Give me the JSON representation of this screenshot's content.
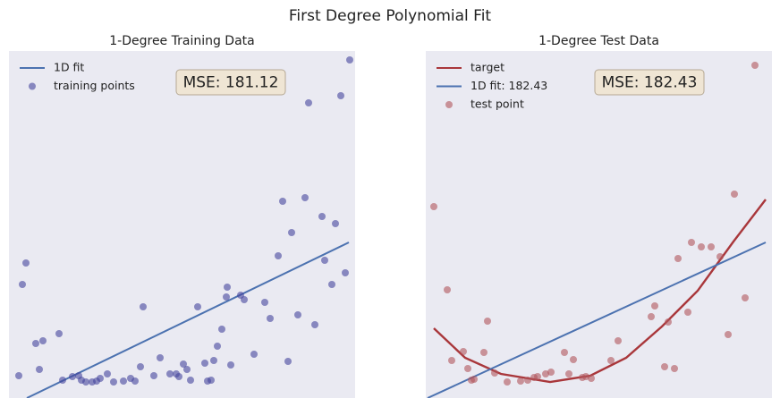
{
  "title": "First Degree Polynomial Fit",
  "chart_data": [
    {
      "type": "scatter",
      "title": "1-Degree Training Data",
      "annotation": "MSE: 181.12",
      "xlim": [
        0,
        387
      ],
      "ylim": [
        0,
        388
      ],
      "legend": "upper left",
      "background": "#eaeaf2",
      "series": [
        {
          "name": "1D fit",
          "type": "line",
          "color": "#4c72b0",
          "x": [
            20,
            380
          ],
          "values": [
            0,
            174
          ]
        },
        {
          "name": "training points",
          "type": "scatter",
          "color": "#44449c",
          "x": [
            11,
            15,
            19,
            30,
            34,
            38,
            56,
            60,
            71,
            78,
            81,
            86,
            93,
            98,
            102,
            110,
            117,
            128,
            136,
            141,
            147,
            150,
            162,
            169,
            180,
            187,
            190,
            195,
            199,
            203,
            211,
            219,
            222,
            226,
            229,
            233,
            238,
            243,
            244,
            248,
            259,
            263,
            274,
            286,
            292,
            301,
            306,
            312,
            316,
            323,
            331,
            335,
            342,
            350,
            353,
            361,
            365,
            371,
            376,
            381
          ],
          "values": [
            25,
            127,
            151,
            61,
            32,
            64,
            72,
            20,
            24,
            25,
            20,
            18,
            18,
            19,
            22,
            27,
            18,
            19,
            22,
            19,
            35,
            102,
            25,
            45,
            27,
            27,
            24,
            38,
            32,
            20,
            102,
            39,
            19,
            20,
            42,
            58,
            77,
            113,
            124,
            37,
            115,
            110,
            49,
            107,
            89,
            159,
            220,
            41,
            185,
            93,
            224,
            330,
            82,
            203,
            154,
            127,
            195,
            338,
            140,
            378
          ]
        }
      ]
    },
    {
      "type": "scatter",
      "title": "1-Degree Test Data",
      "annotation": "MSE: 182.43",
      "xlim": [
        0,
        387
      ],
      "ylim": [
        0,
        388
      ],
      "legend": "upper left",
      "background": "#eaeaf2",
      "series": [
        {
          "name": "target",
          "type": "line",
          "color": "#a9373b",
          "x": [
            9,
            44,
            84,
            139,
            184,
            224,
            264,
            304,
            344,
            380
          ],
          "values": [
            78,
            45,
            27,
            18,
            25,
            45,
            80,
            120,
            175,
            222
          ]
        },
        {
          "name": "1D fit: 182.43",
          "type": "line",
          "color": "#4c72b0",
          "x": [
            2,
            380
          ],
          "values": [
            0,
            174
          ]
        },
        {
          "name": "test point",
          "type": "scatter",
          "color": "#b0555c",
          "x": [
            9,
            24,
            29,
            42,
            47,
            51,
            54,
            65,
            69,
            77,
            91,
            106,
            114,
            121,
            125,
            134,
            140,
            155,
            160,
            165,
            175,
            179,
            185,
            207,
            215,
            252,
            256,
            267,
            271,
            278,
            282,
            293,
            297,
            308,
            319,
            329,
            338,
            345,
            357,
            368
          ],
          "values": [
            214,
            121,
            42,
            52,
            33,
            20,
            21,
            51,
            86,
            28,
            18,
            19,
            20,
            23,
            24,
            27,
            29,
            51,
            27,
            43,
            23,
            24,
            22,
            42,
            64,
            91,
            103,
            35,
            85,
            33,
            156,
            96,
            174,
            169,
            169,
            158,
            71,
            228,
            112,
            372
          ]
        }
      ]
    }
  ]
}
